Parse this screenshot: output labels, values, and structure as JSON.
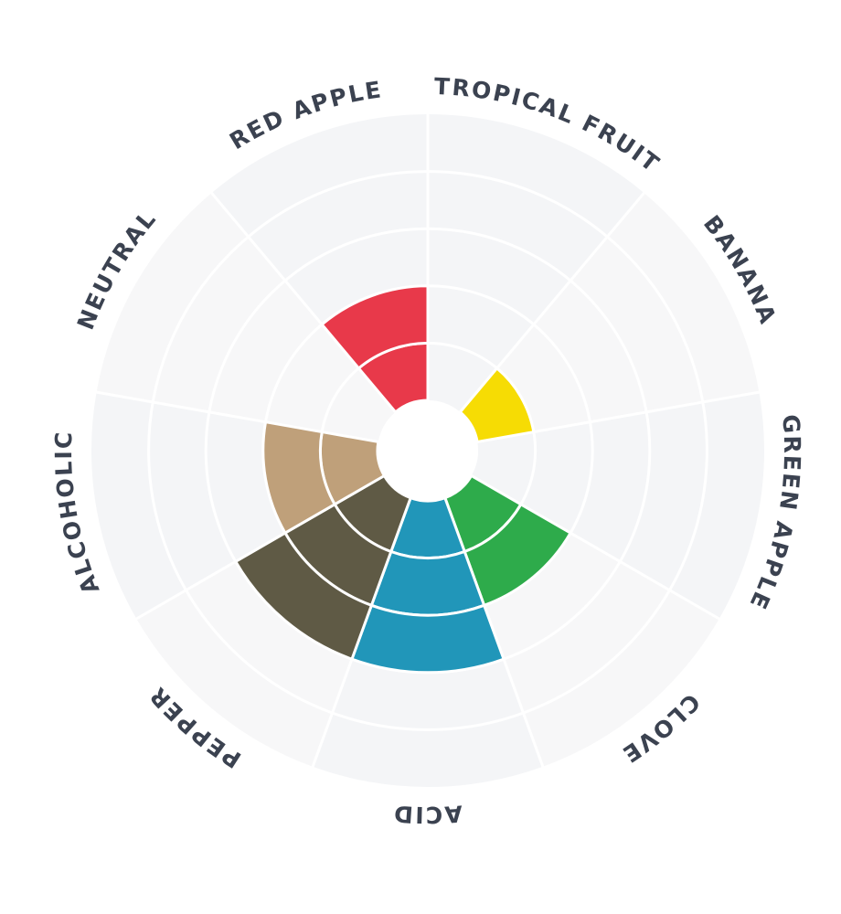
{
  "chart_data": {
    "type": "polar-area",
    "title": "",
    "categories": [
      "TROPICAL FRUIT",
      "BANANA",
      "GREEN APPLE",
      "CLOVE",
      "ACID",
      "PEPPER",
      "ALCOHOLIC",
      "NEUTRAL",
      "RED APPLE"
    ],
    "values": [
      0,
      1,
      0,
      2,
      3,
      3,
      2,
      0,
      2
    ],
    "colors": [
      "#e8394a",
      "#f6dc04",
      "#2eab4b",
      "#2eab4b",
      "#2196b9",
      "#5f5a45",
      "#bfa07a",
      "#bfa07a",
      "#e8394a"
    ],
    "rlim": [
      0,
      5
    ],
    "grid": true,
    "background_colors": [
      "#f4f5f7",
      "#f7f7f8"
    ]
  }
}
